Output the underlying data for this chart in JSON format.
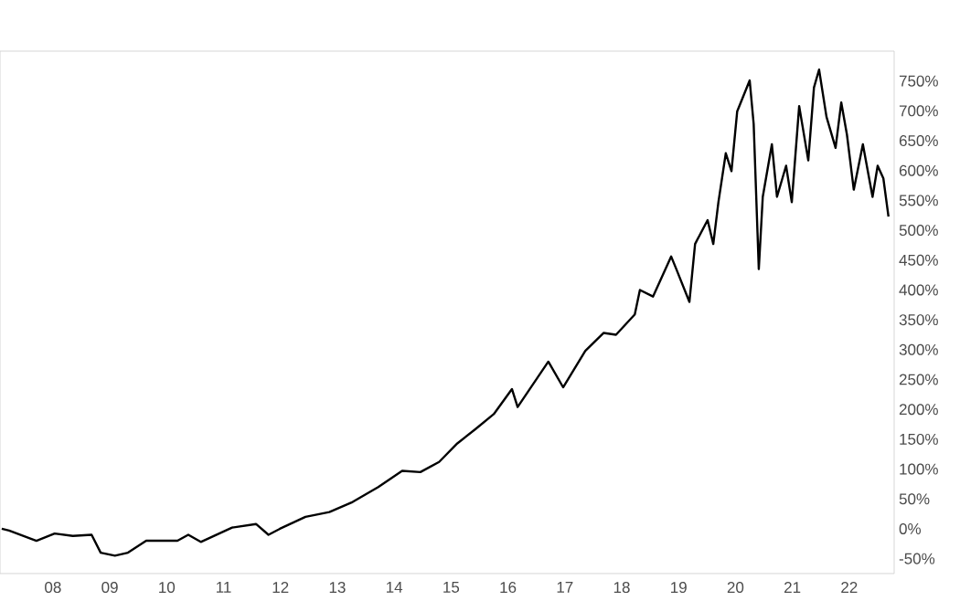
{
  "chart_data": {
    "type": "line",
    "x": [
      2007.1,
      2007.23,
      2007.71,
      2008.03,
      2008.35,
      2008.68,
      2008.84,
      2009.09,
      2009.32,
      2009.64,
      2010.19,
      2010.38,
      2010.6,
      2011.15,
      2011.57,
      2011.79,
      2011.99,
      2012.44,
      2012.86,
      2013.27,
      2013.72,
      2014.14,
      2014.46,
      2014.79,
      2015.11,
      2015.43,
      2015.75,
      2016.07,
      2016.17,
      2016.71,
      2016.97,
      2017.36,
      2017.68,
      2017.9,
      2018.23,
      2018.32,
      2018.55,
      2018.87,
      2018.96,
      2019.19,
      2019.29,
      2019.51,
      2019.61,
      2019.7,
      2019.83,
      2019.93,
      2020.03,
      2020.25,
      2020.32,
      2020.41,
      2020.48,
      2020.64,
      2020.73,
      2020.89,
      2020.99,
      2021.12,
      2021.28,
      2021.38,
      2021.47,
      2021.6,
      2021.76,
      2021.86,
      2021.96,
      2022.08,
      2022.24,
      2022.41,
      2022.5,
      2022.6,
      2022.69
    ],
    "series": [
      {
        "color": "#000000",
        "values": [
          0,
          -3,
          -20,
          -8,
          -12,
          -10,
          -40,
          -45,
          -40,
          -20,
          -20,
          -10,
          -22,
          2,
          8,
          -10,
          0,
          20,
          28,
          45,
          70,
          97,
          95,
          112,
          143,
          167,
          192,
          234,
          204,
          280,
          237,
          298,
          328,
          325,
          359,
          400,
          389,
          456,
          435,
          380,
          477,
          517,
          477,
          547,
          629,
          599,
          699,
          751,
          678,
          435,
          556,
          644,
          556,
          608,
          547,
          708,
          617,
          739,
          769,
          690,
          638,
          714,
          660,
          568,
          644,
          556,
          608,
          587,
          523
        ]
      }
    ],
    "xlim": [
      2007.07,
      2022.79
    ],
    "xticks": [
      {
        "value": 2008,
        "label": "08"
      },
      {
        "value": 2009,
        "label": "09"
      },
      {
        "value": 2010,
        "label": "10"
      },
      {
        "value": 2011,
        "label": "11"
      },
      {
        "value": 2012,
        "label": "12"
      },
      {
        "value": 2013,
        "label": "13"
      },
      {
        "value": 2014,
        "label": "14"
      },
      {
        "value": 2015,
        "label": "15"
      },
      {
        "value": 2016,
        "label": "16"
      },
      {
        "value": 2017,
        "label": "17"
      },
      {
        "value": 2018,
        "label": "18"
      },
      {
        "value": 2019,
        "label": "19"
      },
      {
        "value": 2020,
        "label": "20"
      },
      {
        "value": 2021,
        "label": "21"
      },
      {
        "value": 2022,
        "label": "22"
      }
    ],
    "ylim": [
      -75,
      800
    ],
    "yticks": [
      {
        "value": -50,
        "label": "-50%"
      },
      {
        "value": 0,
        "label": "0%"
      },
      {
        "value": 50,
        "label": "50%"
      },
      {
        "value": 100,
        "label": "100%"
      },
      {
        "value": 150,
        "label": "150%"
      },
      {
        "value": 200,
        "label": "200%"
      },
      {
        "value": 250,
        "label": "250%"
      },
      {
        "value": 300,
        "label": "300%"
      },
      {
        "value": 350,
        "label": "350%"
      },
      {
        "value": 400,
        "label": "400%"
      },
      {
        "value": 450,
        "label": "450%"
      },
      {
        "value": 500,
        "label": "500%"
      },
      {
        "value": 550,
        "label": "550%"
      },
      {
        "value": 600,
        "label": "600%"
      },
      {
        "value": 650,
        "label": "650%"
      },
      {
        "value": 700,
        "label": "700%"
      },
      {
        "value": 750,
        "label": "750%"
      }
    ],
    "grid": false,
    "marker": "none",
    "line_style": "solid"
  }
}
